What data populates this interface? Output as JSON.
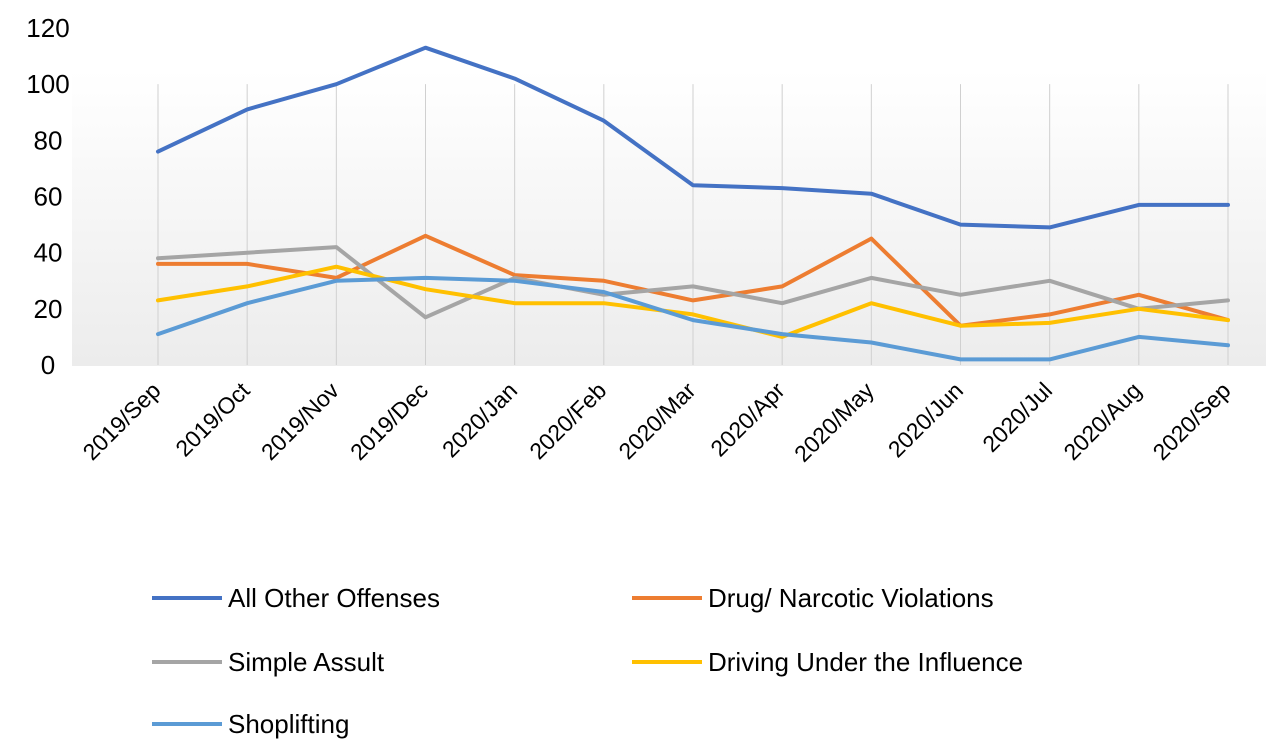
{
  "chart_data": {
    "type": "line",
    "title": "",
    "xlabel": "",
    "ylabel": "",
    "ylim": [
      0,
      120
    ],
    "yticks": [
      0,
      20,
      40,
      60,
      80,
      100,
      120
    ],
    "grid": "vertical",
    "legend_position": "bottom",
    "categories": [
      "2019/Sep",
      "2019/Oct",
      "2019/Nov",
      "2019/Dec",
      "2020/Jan",
      "2020/Feb",
      "2020/Mar",
      "2020/Apr",
      "2020/May",
      "2020/Jun",
      "2020/Jul",
      "2020/Aug",
      "2020/Sep"
    ],
    "series": [
      {
        "name": "All Other Offenses",
        "color": "#4472C4",
        "values": [
          76,
          91,
          100,
          113,
          102,
          87,
          64,
          63,
          61,
          50,
          49,
          57,
          57
        ]
      },
      {
        "name": "Drug/ Narcotic Violations",
        "color": "#ED7D31",
        "values": [
          36,
          36,
          31,
          46,
          32,
          30,
          23,
          28,
          45,
          14,
          18,
          25,
          16
        ]
      },
      {
        "name": "Simple Assult",
        "color": "#A5A5A5",
        "values": [
          38,
          40,
          42,
          17,
          31,
          25,
          28,
          22,
          31,
          25,
          30,
          20,
          23
        ]
      },
      {
        "name": "Driving Under the Influence",
        "color": "#FFC000",
        "values": [
          23,
          28,
          35,
          27,
          22,
          22,
          18,
          10,
          22,
          14,
          15,
          20,
          16
        ]
      },
      {
        "name": "Shoplifting",
        "color": "#5B9BD5",
        "values": [
          11,
          22,
          30,
          31,
          30,
          26,
          16,
          11,
          8,
          2,
          2,
          10,
          7
        ]
      }
    ]
  }
}
